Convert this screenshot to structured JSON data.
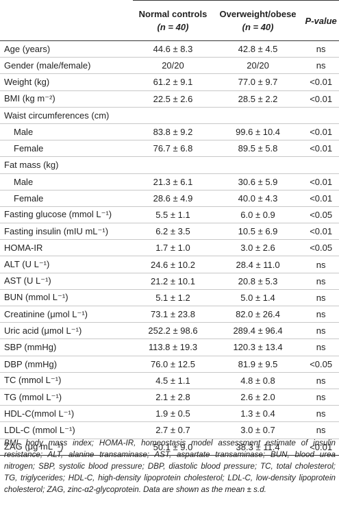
{
  "header": {
    "col1_line1": "Normal controls",
    "col1_line2": "(n = 40)",
    "col2_line1": "Overweight/obese",
    "col2_line2": "(n = 40)",
    "col3": "P-value"
  },
  "rows": [
    {
      "label": "Age (years)",
      "normal": "44.6 ± 8.3",
      "obese": "42.8 ± 4.5",
      "p": "ns"
    },
    {
      "label": "Gender (male/female)",
      "normal": "20/20",
      "obese": "20/20",
      "p": "ns"
    },
    {
      "label": "Weight (kg)",
      "normal": "61.2 ± 9.1",
      "obese": "77.0 ± 9.7",
      "p": "<0.01"
    },
    {
      "label": "BMI (kg m⁻²)",
      "normal": "22.5 ± 2.6",
      "obese": "28.5 ± 2.2",
      "p": "<0.01"
    },
    {
      "label": "Waist circumferences (cm)",
      "normal": "",
      "obese": "",
      "p": ""
    },
    {
      "label": "Male",
      "normal": "83.8 ± 9.2",
      "obese": "99.6 ± 10.4",
      "p": "<0.01"
    },
    {
      "label": "Female",
      "normal": "76.7 ± 6.8",
      "obese": "89.5 ± 5.8",
      "p": "<0.01"
    },
    {
      "label": "Fat mass (kg)",
      "normal": "",
      "obese": "",
      "p": ""
    },
    {
      "label": "Male",
      "normal": "21.3 ± 6.1",
      "obese": "30.6 ± 5.9",
      "p": "<0.01"
    },
    {
      "label": "Female",
      "normal": "28.6 ± 4.9",
      "obese": "40.0 ± 4.3",
      "p": "<0.01"
    },
    {
      "label": "Fasting glucose (mmol L⁻¹)",
      "normal": "5.5 ± 1.1",
      "obese": "6.0 ± 0.9",
      "p": "<0.05"
    },
    {
      "label": "Fasting insulin (mIU mL⁻¹)",
      "normal": "6.2 ± 3.5",
      "obese": "10.5 ± 6.9",
      "p": "<0.01"
    },
    {
      "label": "HOMA-IR",
      "normal": "1.7 ± 1.0",
      "obese": "3.0 ± 2.6",
      "p": "<0.05"
    },
    {
      "label": "ALT (U L⁻¹)",
      "normal": "24.6 ± 10.2",
      "obese": "28.4 ± 11.0",
      "p": "ns"
    },
    {
      "label": "AST (U L⁻¹)",
      "normal": "21.2 ± 10.1",
      "obese": "20.8 ± 5.3",
      "p": "ns"
    },
    {
      "label": "BUN (mmol L⁻¹)",
      "normal": "5.1 ± 1.2",
      "obese": "5.0 ± 1.4",
      "p": "ns"
    },
    {
      "label": "Creatinine (μmol L⁻¹)",
      "normal": "73.1 ± 23.8",
      "obese": "82.0 ± 26.4",
      "p": "ns"
    },
    {
      "label": "Uric acid (μmol L⁻¹)",
      "normal": "252.2 ± 98.6",
      "obese": "289.4 ± 96.4",
      "p": "ns"
    },
    {
      "label": "SBP (mmHg)",
      "normal": "113.8 ± 19.3",
      "obese": "120.3 ± 13.4",
      "p": "ns"
    },
    {
      "label": "DBP (mmHg)",
      "normal": "76.0 ± 12.5",
      "obese": "81.9 ± 9.5",
      "p": "<0.05"
    },
    {
      "label": "TC (mmol L⁻¹)",
      "normal": "4.5 ± 1.1",
      "obese": "4.8 ± 0.8",
      "p": "ns"
    },
    {
      "label": "TG (mmol L⁻¹)",
      "normal": "2.1 ± 2.8",
      "obese": "2.6 ± 2.0",
      "p": "ns"
    },
    {
      "label": "HDL-C(mmol L⁻¹)",
      "normal": "1.9 ± 0.5",
      "obese": "1.3 ± 0.4",
      "p": "ns"
    },
    {
      "label": "LDL-C (mmol L⁻¹)",
      "normal": "2.7 ± 0.7",
      "obese": "3.0 ± 0.7",
      "p": "ns"
    },
    {
      "label": "ZAG (μg mL⁻¹)",
      "normal": "50.1 ± 9.0",
      "obese": "38.3 ± 11.4",
      "p": "<0.01"
    }
  ],
  "footnote": "BMI, body mass index; HOMA-IR, homeostasis model assessment estimate of insulin resistance; ALT, alanine transaminase; AST, aspartate transaminase; BUN, blood urea nitrogen; SBP, systolic blood pressure; DBP, diastolic blood pressure; TC, total cholesterol; TG, triglycerides; HDL-C, high-density lipoprotein cholesterol; LDL-C, low-density lipoprotein cholesterol; ZAG, zinc-α2-glycoprotein. Data are shown as the mean ± s.d."
}
